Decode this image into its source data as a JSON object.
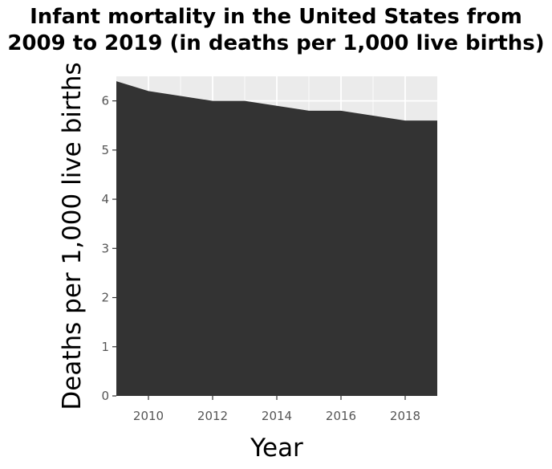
{
  "chart_data": {
    "type": "area",
    "title_lines": [
      "Infant mortality in the United States from",
      "2009 to 2019 (in deaths per 1,000 live births)"
    ],
    "xlabel": "Year",
    "ylabel": "Deaths per 1,000 live births",
    "x": [
      2009,
      2010,
      2011,
      2012,
      2013,
      2014,
      2015,
      2016,
      2017,
      2018,
      2019
    ],
    "y": [
      6.4,
      6.2,
      6.1,
      6.0,
      6.0,
      5.9,
      5.8,
      5.8,
      5.7,
      5.6,
      5.6
    ],
    "xlim": [
      2009,
      2019
    ],
    "ylim": [
      0,
      6.5
    ],
    "xticks": [
      2010,
      2012,
      2014,
      2016,
      2018
    ],
    "yticks": [
      0,
      1,
      2,
      3,
      4,
      5,
      6
    ],
    "grid": true,
    "legend": "none",
    "colors": {
      "area": "#333333",
      "panel": "#ebebeb",
      "grid": "#ffffff",
      "tick_text": "#555555"
    }
  }
}
